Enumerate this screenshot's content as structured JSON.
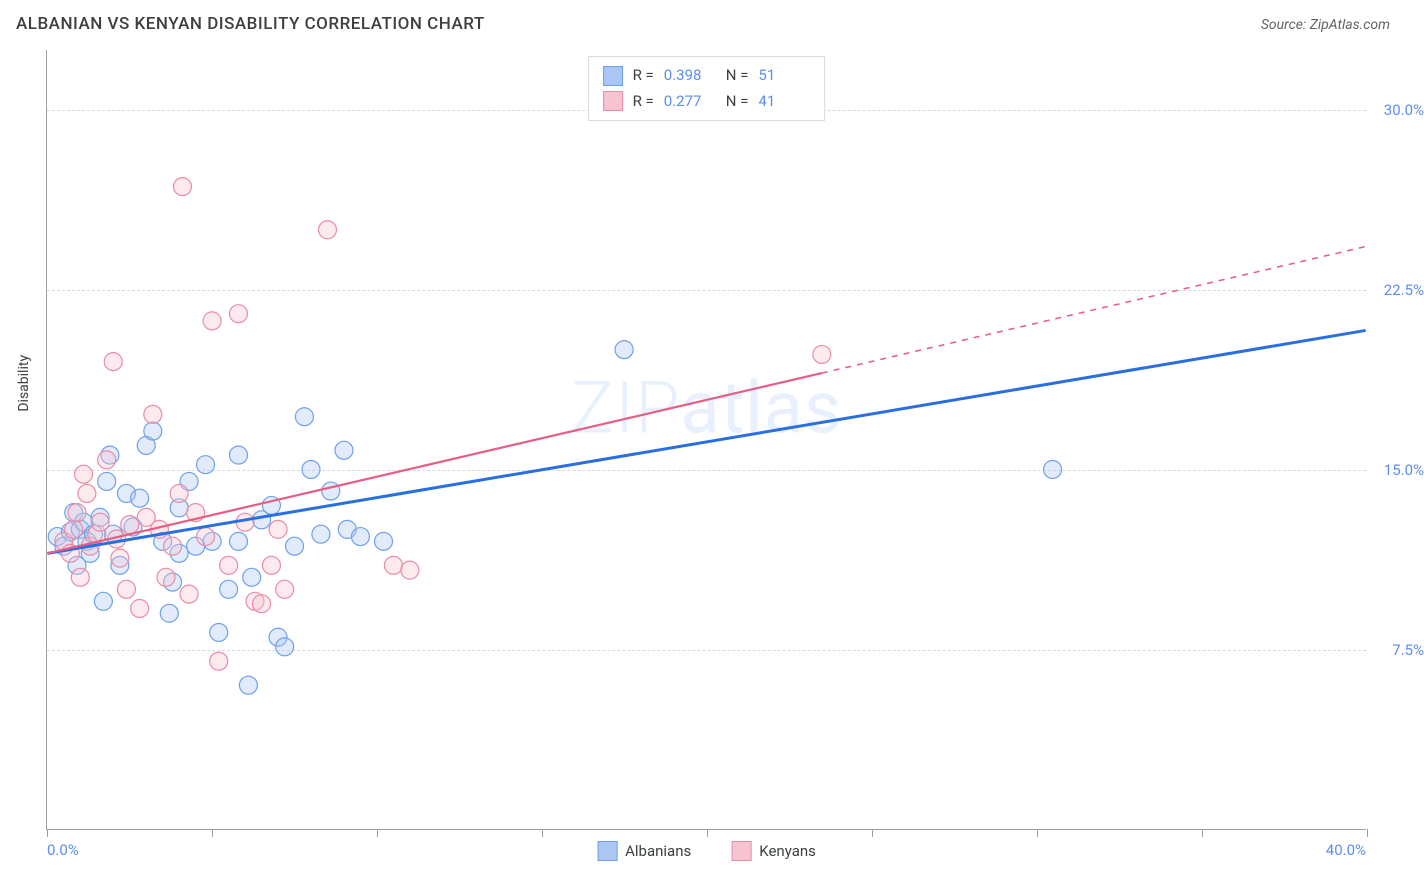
{
  "title": "ALBANIAN VS KENYAN DISABILITY CORRELATION CHART",
  "source": "Source: ZipAtlas.com",
  "ylabel": "Disability",
  "watermark_part1": "ZIP",
  "watermark_part2": "atlas",
  "chart": {
    "type": "scatter-with-regression",
    "xlim": [
      0,
      40
    ],
    "ylim": [
      0,
      32.5
    ],
    "ytick_values": [
      7.5,
      15.0,
      22.5,
      30.0
    ],
    "ytick_labels": [
      "7.5%",
      "15.0%",
      "22.5%",
      "30.0%"
    ],
    "xtick_values": [
      0,
      5,
      10,
      15,
      20,
      25,
      30,
      35,
      40
    ],
    "xaxis_min_label": "0.0%",
    "xaxis_max_label": "40.0%",
    "grid_color": "#d8dade",
    "axis_color": "#9aa0a6",
    "background_color": "#ffffff",
    "marker_radius": 9,
    "marker_fill_opacity": 0.35,
    "marker_stroke_width": 1.2,
    "series": [
      {
        "name": "Albanians",
        "color_fill": "#a9c6f5",
        "color_stroke": "#6fa1e8",
        "line_color": "#2a6fe0",
        "line_width": 3,
        "R": 0.398,
        "N": 51,
        "regression": {
          "x1": 0,
          "y1": 11.5,
          "x2": 40,
          "y2": 20.8,
          "x_solid_end": 40
        },
        "points": [
          [
            0.3,
            12.2
          ],
          [
            0.5,
            11.8
          ],
          [
            0.7,
            12.4
          ],
          [
            0.8,
            13.2
          ],
          [
            0.9,
            11.0
          ],
          [
            1.0,
            12.5
          ],
          [
            1.1,
            12.8
          ],
          [
            1.2,
            12.0
          ],
          [
            1.3,
            11.5
          ],
          [
            1.4,
            12.3
          ],
          [
            1.6,
            13.0
          ],
          [
            1.7,
            9.5
          ],
          [
            1.8,
            14.5
          ],
          [
            1.9,
            15.6
          ],
          [
            2.0,
            12.3
          ],
          [
            2.2,
            11.0
          ],
          [
            2.4,
            14.0
          ],
          [
            2.6,
            12.6
          ],
          [
            2.8,
            13.8
          ],
          [
            3.0,
            16.0
          ],
          [
            3.2,
            16.6
          ],
          [
            3.5,
            12.0
          ],
          [
            3.7,
            9.0
          ],
          [
            3.8,
            10.3
          ],
          [
            4.0,
            11.5
          ],
          [
            4.0,
            13.4
          ],
          [
            4.3,
            14.5
          ],
          [
            4.5,
            11.8
          ],
          [
            4.8,
            15.2
          ],
          [
            5.0,
            12.0
          ],
          [
            5.2,
            8.2
          ],
          [
            5.5,
            10.0
          ],
          [
            5.8,
            12.0
          ],
          [
            5.8,
            15.6
          ],
          [
            6.1,
            6.0
          ],
          [
            6.5,
            12.9
          ],
          [
            6.8,
            13.5
          ],
          [
            7.0,
            8.0
          ],
          [
            7.2,
            7.6
          ],
          [
            7.5,
            11.8
          ],
          [
            7.8,
            17.2
          ],
          [
            8.0,
            15.0
          ],
          [
            8.3,
            12.3
          ],
          [
            8.6,
            14.1
          ],
          [
            9.0,
            15.8
          ],
          [
            9.1,
            12.5
          ],
          [
            9.5,
            12.2
          ],
          [
            10.2,
            12.0
          ],
          [
            17.5,
            20.0
          ],
          [
            30.5,
            15.0
          ],
          [
            6.2,
            10.5
          ]
        ]
      },
      {
        "name": "Kenyans",
        "color_fill": "#f6c3d1",
        "color_stroke": "#e98ca5",
        "line_color": "#e85d84",
        "line_width": 2.2,
        "R": 0.277,
        "N": 41,
        "regression": {
          "x1": 0,
          "y1": 11.5,
          "x2": 40,
          "y2": 24.3,
          "x_solid_end": 23.5
        },
        "points": [
          [
            0.5,
            12.0
          ],
          [
            0.7,
            11.5
          ],
          [
            0.8,
            12.5
          ],
          [
            0.9,
            13.2
          ],
          [
            1.0,
            10.5
          ],
          [
            1.1,
            14.8
          ],
          [
            1.2,
            14.0
          ],
          [
            1.3,
            11.8
          ],
          [
            1.5,
            12.3
          ],
          [
            1.6,
            12.8
          ],
          [
            1.8,
            15.4
          ],
          [
            2.0,
            19.5
          ],
          [
            2.2,
            11.3
          ],
          [
            2.4,
            10.0
          ],
          [
            2.5,
            12.7
          ],
          [
            2.8,
            9.2
          ],
          [
            3.0,
            13.0
          ],
          [
            3.2,
            17.3
          ],
          [
            3.4,
            12.5
          ],
          [
            3.6,
            10.5
          ],
          [
            3.8,
            11.8
          ],
          [
            4.0,
            14.0
          ],
          [
            4.1,
            26.8
          ],
          [
            4.3,
            9.8
          ],
          [
            4.5,
            13.2
          ],
          [
            4.8,
            12.2
          ],
          [
            5.0,
            21.2
          ],
          [
            5.2,
            7.0
          ],
          [
            5.5,
            11.0
          ],
          [
            5.8,
            21.5
          ],
          [
            6.0,
            12.8
          ],
          [
            6.3,
            9.5
          ],
          [
            6.5,
            9.4
          ],
          [
            6.8,
            11.0
          ],
          [
            7.0,
            12.5
          ],
          [
            7.2,
            10.0
          ],
          [
            8.5,
            25.0
          ],
          [
            10.5,
            11.0
          ],
          [
            11.0,
            10.8
          ],
          [
            23.5,
            19.8
          ],
          [
            2.1,
            12.1
          ]
        ]
      }
    ]
  },
  "legend_top": [
    {
      "swatch_fill": "#a9c6f5",
      "swatch_stroke": "#6fa1e8",
      "R_label": "R =",
      "R_val": "0.398",
      "N_label": "N =",
      "N_val": "51"
    },
    {
      "swatch_fill": "#f6c3d1",
      "swatch_stroke": "#e98ca5",
      "R_label": "R =",
      "R_val": "0.277",
      "N_label": "N =",
      "N_val": "41"
    }
  ],
  "legend_bottom": [
    {
      "swatch_fill": "#a9c6f5",
      "swatch_stroke": "#6fa1e8",
      "label": "Albanians"
    },
    {
      "swatch_fill": "#f6c3d1",
      "swatch_stroke": "#e98ca5",
      "label": "Kenyans"
    }
  ]
}
